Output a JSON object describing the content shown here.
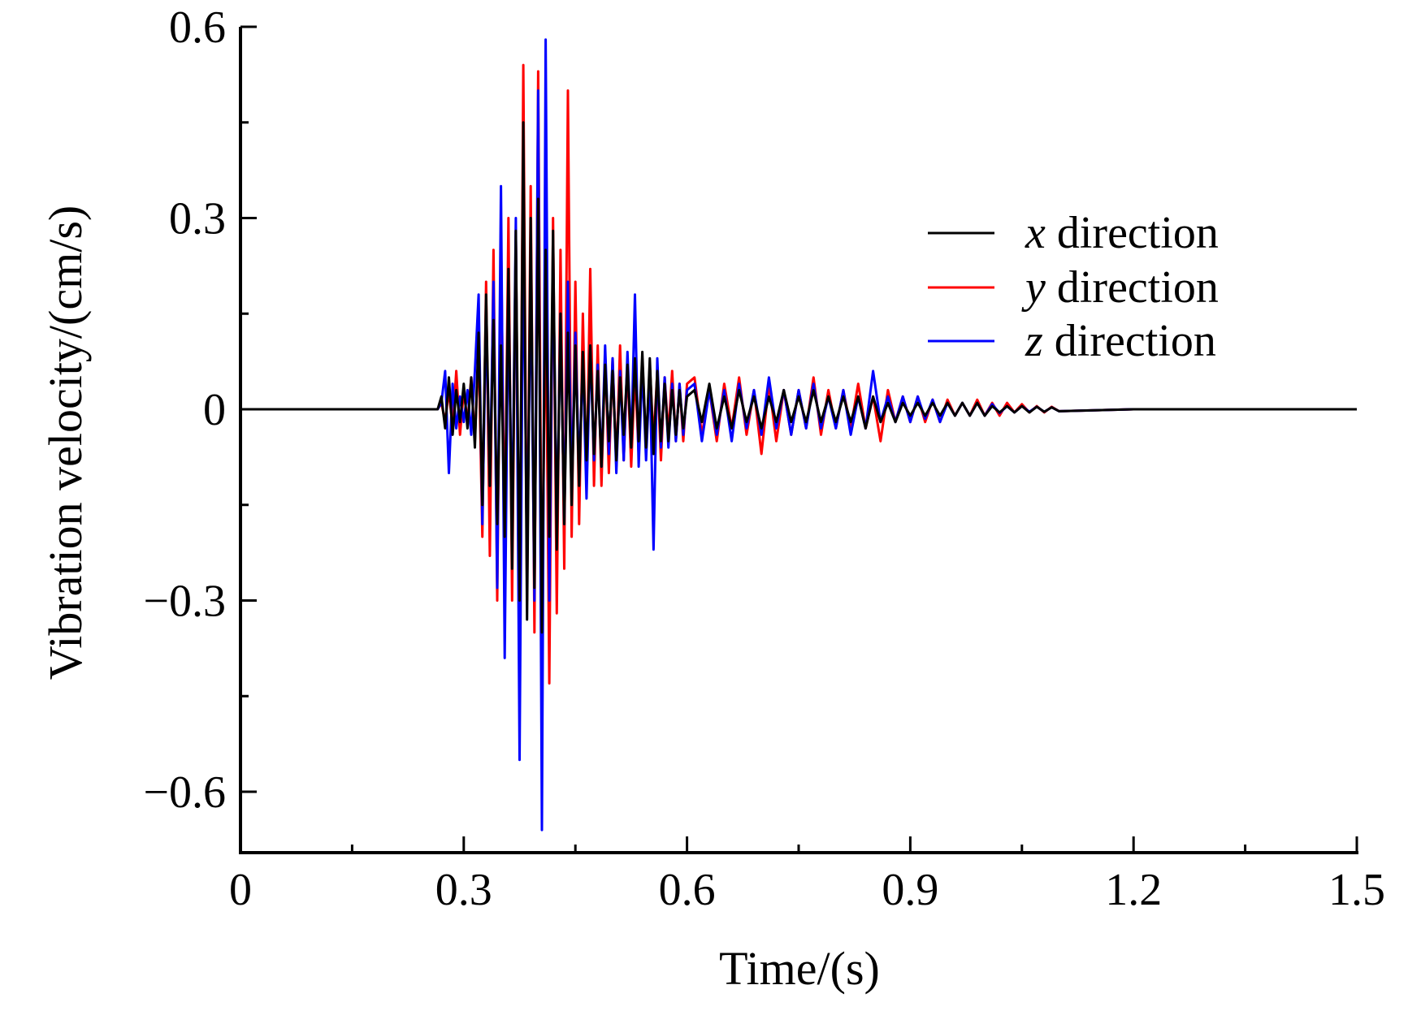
{
  "chart_data": {
    "type": "line",
    "title": "",
    "xlabel": "Time/(s)",
    "ylabel": "Vibration velocity/(cm/s)",
    "xlim": [
      0,
      1.5
    ],
    "ylim": [
      -0.7,
      0.6
    ],
    "xticks": [
      "0",
      "0.3",
      "0.6",
      "0.9",
      "1.2",
      "1.5"
    ],
    "xtick_values": [
      0,
      0.3,
      0.6,
      0.9,
      1.2,
      1.5
    ],
    "yticks": [
      "0.6",
      "0.3",
      "0",
      "−0.3",
      "−0.6"
    ],
    "ytick_values": [
      0.6,
      0.3,
      0,
      -0.3,
      -0.6
    ],
    "grid": false,
    "legend_placement": "top-right",
    "legend": [
      {
        "symbol": "x",
        "label": " direction",
        "color": "#000000"
      },
      {
        "symbol": "y",
        "label": " direction",
        "color": "#ff0000"
      },
      {
        "symbol": "z",
        "label": " direction",
        "color": "#0000ff"
      }
    ],
    "x": [
      0,
      0.26,
      0.265,
      0.27,
      0.275,
      0.28,
      0.285,
      0.29,
      0.295,
      0.3,
      0.305,
      0.31,
      0.315,
      0.32,
      0.325,
      0.33,
      0.335,
      0.34,
      0.345,
      0.35,
      0.355,
      0.36,
      0.365,
      0.37,
      0.375,
      0.38,
      0.385,
      0.39,
      0.395,
      0.4,
      0.405,
      0.41,
      0.415,
      0.42,
      0.425,
      0.43,
      0.435,
      0.44,
      0.445,
      0.45,
      0.455,
      0.46,
      0.465,
      0.47,
      0.475,
      0.48,
      0.485,
      0.49,
      0.495,
      0.5,
      0.505,
      0.51,
      0.515,
      0.52,
      0.525,
      0.53,
      0.535,
      0.54,
      0.545,
      0.55,
      0.555,
      0.56,
      0.565,
      0.57,
      0.575,
      0.58,
      0.585,
      0.59,
      0.595,
      0.6,
      0.61,
      0.62,
      0.63,
      0.64,
      0.65,
      0.66,
      0.67,
      0.68,
      0.69,
      0.7,
      0.71,
      0.72,
      0.73,
      0.74,
      0.75,
      0.76,
      0.77,
      0.78,
      0.79,
      0.8,
      0.81,
      0.82,
      0.83,
      0.84,
      0.85,
      0.86,
      0.87,
      0.88,
      0.89,
      0.9,
      0.91,
      0.92,
      0.93,
      0.94,
      0.95,
      0.96,
      0.97,
      0.98,
      0.99,
      1.0,
      1.01,
      1.02,
      1.03,
      1.04,
      1.05,
      1.06,
      1.07,
      1.08,
      1.09,
      1.1,
      1.2,
      1.5
    ],
    "series": [
      {
        "name": "x direction",
        "color": "#000000",
        "values": [
          0,
          0,
          0,
          0.02,
          -0.03,
          0.05,
          -0.04,
          0.03,
          -0.02,
          0.04,
          -0.03,
          0.05,
          -0.06,
          0.12,
          -0.15,
          0.18,
          -0.12,
          0.14,
          -0.18,
          0.1,
          -0.2,
          0.22,
          -0.25,
          0.28,
          -0.3,
          0.45,
          -0.33,
          0.3,
          -0.28,
          0.33,
          -0.35,
          0.25,
          -0.2,
          0.28,
          -0.22,
          0.15,
          -0.18,
          0.12,
          -0.15,
          0.1,
          -0.12,
          0.09,
          -0.08,
          0.1,
          -0.07,
          0.06,
          -0.09,
          0.07,
          -0.05,
          0.06,
          -0.08,
          0.05,
          -0.04,
          0.07,
          -0.06,
          0.08,
          -0.05,
          0.09,
          -0.06,
          0.08,
          -0.07,
          0.06,
          -0.05,
          0.04,
          -0.05,
          0.03,
          -0.04,
          0.03,
          -0.03,
          0.02,
          0.03,
          -0.02,
          0.04,
          -0.03,
          0.02,
          -0.03,
          0.03,
          -0.02,
          0.02,
          -0.03,
          0.02,
          -0.02,
          0.03,
          -0.02,
          0.02,
          -0.02,
          0.03,
          -0.02,
          0.02,
          -0.02,
          0.02,
          -0.02,
          0.02,
          -0.03,
          0.02,
          -0.02,
          0.01,
          -0.02,
          0.01,
          -0.01,
          0.01,
          -0.01,
          0.01,
          -0.01,
          0.01,
          -0.01,
          0.01,
          -0.01,
          0.01,
          -0.01,
          0.005,
          -0.005,
          0.005,
          -0.005,
          0.005,
          -0.005,
          0.004,
          -0.004,
          0.003,
          -0.003,
          0,
          0
        ]
      },
      {
        "name": "y direction",
        "color": "#ff0000",
        "values": [
          0,
          0,
          0,
          0.01,
          -0.02,
          0.03,
          -0.03,
          0.06,
          -0.04,
          0.03,
          -0.02,
          0.05,
          -0.05,
          0.1,
          -0.2,
          0.2,
          -0.23,
          0.25,
          -0.3,
          0.28,
          -0.22,
          0.3,
          -0.3,
          0.28,
          -0.38,
          0.54,
          -0.3,
          0.35,
          -0.35,
          0.53,
          -0.36,
          0.2,
          -0.43,
          0.3,
          -0.32,
          0.25,
          -0.25,
          0.5,
          -0.2,
          0.2,
          -0.18,
          0.15,
          -0.12,
          0.22,
          -0.12,
          0.1,
          -0.12,
          0.09,
          -0.1,
          0.08,
          -0.09,
          0.1,
          -0.08,
          0.07,
          -0.09,
          0.06,
          -0.07,
          0.08,
          -0.06,
          0.07,
          -0.05,
          0.06,
          -0.08,
          0.05,
          -0.04,
          0.06,
          -0.05,
          0.04,
          -0.05,
          0.04,
          0.05,
          -0.04,
          0.03,
          -0.05,
          0.04,
          -0.03,
          0.05,
          -0.04,
          0.03,
          -0.07,
          0.04,
          -0.05,
          0.03,
          -0.04,
          0.03,
          -0.03,
          0.05,
          -0.04,
          0.03,
          -0.03,
          0.03,
          -0.03,
          0.04,
          -0.03,
          0.02,
          -0.05,
          0.03,
          -0.02,
          0.02,
          -0.02,
          0.02,
          -0.02,
          0.015,
          -0.02,
          0.015,
          -0.01,
          0.01,
          -0.01,
          0.015,
          -0.01,
          0.01,
          -0.01,
          0.01,
          -0.005,
          0.008,
          -0.005,
          0.005,
          -0.005,
          0.004,
          -0.003,
          0,
          0
        ]
      },
      {
        "name": "z direction",
        "color": "#0000ff",
        "values": [
          0,
          0,
          0,
          0.01,
          0.06,
          -0.1,
          0.04,
          -0.03,
          0.02,
          -0.02,
          0.03,
          -0.04,
          0.06,
          0.18,
          -0.18,
          0.15,
          -0.12,
          0.2,
          -0.28,
          0.35,
          -0.39,
          0.2,
          -0.2,
          0.3,
          -0.55,
          0.3,
          -0.25,
          0.22,
          -0.3,
          0.5,
          -0.66,
          0.58,
          -0.3,
          0.25,
          -0.2,
          0.15,
          -0.18,
          0.2,
          -0.12,
          0.12,
          -0.1,
          0.08,
          -0.14,
          0.1,
          -0.08,
          0.07,
          -0.09,
          0.1,
          -0.07,
          0.08,
          -0.1,
          0.06,
          -0.08,
          0.09,
          -0.06,
          0.18,
          -0.09,
          0.07,
          -0.08,
          0.06,
          -0.22,
          0.08,
          -0.06,
          0.05,
          -0.06,
          0.04,
          -0.05,
          0.04,
          -0.04,
          0.03,
          0.04,
          -0.05,
          0.03,
          -0.04,
          0.03,
          -0.05,
          0.04,
          -0.03,
          0.03,
          -0.04,
          0.05,
          -0.03,
          0.03,
          -0.04,
          0.03,
          -0.03,
          0.04,
          -0.03,
          0.02,
          -0.03,
          0.03,
          -0.04,
          0.02,
          -0.03,
          0.06,
          -0.02,
          0.02,
          -0.02,
          0.02,
          -0.02,
          0.02,
          -0.015,
          0.015,
          -0.02,
          0.01,
          -0.01,
          0.01,
          -0.01,
          0.01,
          -0.01,
          0.008,
          -0.006,
          0.005,
          -0.005,
          0.005,
          -0.004,
          0.004,
          -0.004,
          0.003,
          -0.003,
          0,
          0
        ]
      }
    ]
  }
}
